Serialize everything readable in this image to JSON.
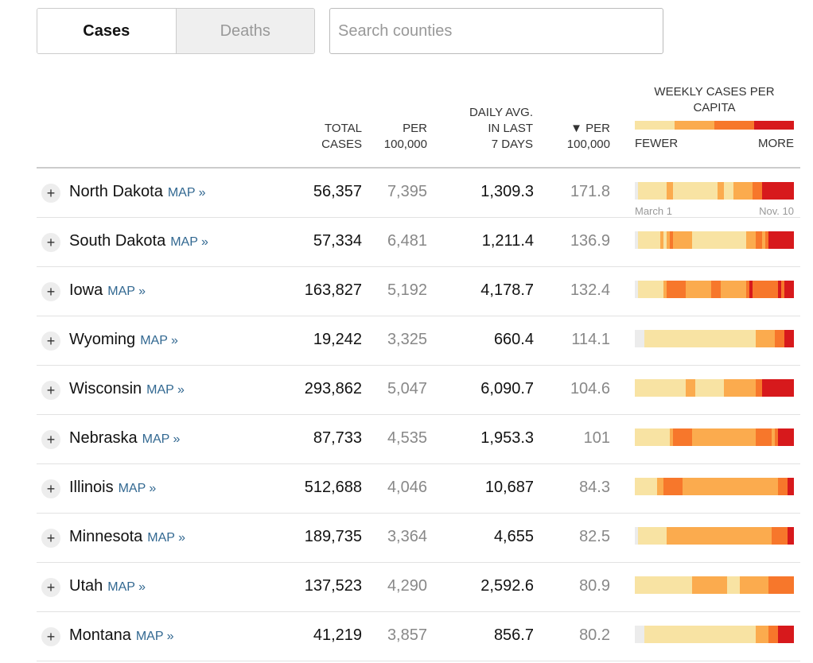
{
  "tabs": [
    {
      "label": "Cases",
      "active": true
    },
    {
      "label": "Deaths",
      "active": false
    }
  ],
  "search": {
    "placeholder": "Search counties",
    "value": ""
  },
  "headers": {
    "total_cases": "TOTAL\nCASES",
    "per_100k": "PER\n100,000",
    "daily_avg": "DAILY AVG.\nIN LAST\n7 DAYS",
    "per_100k_sorted": "▼ PER\n100,000",
    "weekly": "WEEKLY CASES PER CAPITA",
    "legend_fewer": "FEWER",
    "legend_more": "MORE",
    "legend_colors": [
      "#f8e3a3",
      "#fbab4e",
      "#f7772b",
      "#d7191c"
    ]
  },
  "spark_labels": {
    "start": "March 1",
    "end": "Nov. 10"
  },
  "map_label": "MAP »",
  "rows": [
    {
      "name": "North Dakota",
      "total": "56,357",
      "per": "7,395",
      "daily": "1,309.3",
      "per2": "171.8",
      "weeks": [
        0,
        1,
        1,
        1,
        1,
        1,
        1,
        1,
        1,
        1,
        2,
        2,
        1,
        1,
        1,
        1,
        1,
        1,
        1,
        1,
        1,
        1,
        1,
        1,
        1,
        1,
        2,
        2,
        1,
        1,
        1,
        2,
        2,
        2,
        2,
        2,
        2,
        3,
        3,
        3,
        4,
        4,
        4,
        4,
        4,
        4,
        4,
        4,
        4,
        4
      ]
    },
    {
      "name": "South Dakota",
      "total": "57,334",
      "per": "6,481",
      "daily": "1,211.4",
      "per2": "136.9",
      "weeks": [
        0,
        1,
        1,
        1,
        1,
        1,
        1,
        1,
        2,
        1,
        2,
        3,
        2,
        2,
        2,
        2,
        2,
        2,
        1,
        1,
        1,
        1,
        1,
        1,
        1,
        1,
        1,
        1,
        1,
        1,
        1,
        1,
        1,
        1,
        1,
        2,
        2,
        2,
        3,
        3,
        2,
        3,
        4,
        4,
        4,
        4,
        4,
        4,
        4,
        4
      ]
    },
    {
      "name": "Iowa",
      "total": "163,827",
      "per": "5,192",
      "daily": "4,178.7",
      "per2": "132.4",
      "weeks": [
        0,
        1,
        1,
        1,
        1,
        1,
        1,
        1,
        1,
        2,
        3,
        3,
        3,
        3,
        3,
        3,
        2,
        2,
        2,
        2,
        2,
        2,
        2,
        2,
        3,
        3,
        3,
        2,
        2,
        2,
        2,
        2,
        2,
        2,
        2,
        3,
        4,
        3,
        3,
        3,
        3,
        3,
        3,
        3,
        3,
        4,
        3,
        4,
        4,
        4
      ]
    },
    {
      "name": "Wyoming",
      "total": "19,242",
      "per": "3,325",
      "daily": "660.4",
      "per2": "114.1",
      "weeks": [
        0,
        0,
        0,
        1,
        1,
        1,
        1,
        1,
        1,
        1,
        1,
        1,
        1,
        1,
        1,
        1,
        1,
        1,
        1,
        1,
        1,
        1,
        1,
        1,
        1,
        1,
        1,
        1,
        1,
        1,
        1,
        1,
        1,
        1,
        1,
        1,
        1,
        1,
        2,
        2,
        2,
        2,
        2,
        2,
        3,
        3,
        3,
        4,
        4,
        4
      ]
    },
    {
      "name": "Wisconsin",
      "total": "293,862",
      "per": "5,047",
      "daily": "6,090.7",
      "per2": "104.6",
      "weeks": [
        1,
        1,
        1,
        1,
        1,
        1,
        1,
        1,
        1,
        1,
        1,
        1,
        1,
        1,
        1,
        1,
        2,
        2,
        2,
        1,
        1,
        1,
        1,
        1,
        1,
        1,
        1,
        1,
        2,
        2,
        2,
        2,
        2,
        2,
        2,
        2,
        2,
        2,
        3,
        3,
        4,
        4,
        4,
        4,
        4,
        4,
        4,
        4,
        4,
        4
      ]
    },
    {
      "name": "Nebraska",
      "total": "87,733",
      "per": "4,535",
      "daily": "1,953.3",
      "per2": "101",
      "weeks": [
        1,
        1,
        1,
        1,
        1,
        1,
        1,
        1,
        1,
        1,
        1,
        2,
        3,
        3,
        3,
        3,
        3,
        3,
        2,
        2,
        2,
        2,
        2,
        2,
        2,
        2,
        2,
        2,
        2,
        2,
        2,
        2,
        2,
        2,
        2,
        2,
        2,
        2,
        3,
        3,
        3,
        3,
        3,
        2,
        3,
        4,
        4,
        4,
        4,
        4
      ]
    },
    {
      "name": "Illinois",
      "total": "512,688",
      "per": "4,046",
      "daily": "10,687",
      "per2": "84.3",
      "weeks": [
        1,
        1,
        1,
        1,
        1,
        1,
        1,
        2,
        2,
        3,
        3,
        3,
        3,
        3,
        3,
        2,
        2,
        2,
        2,
        2,
        2,
        2,
        2,
        2,
        2,
        2,
        2,
        2,
        2,
        2,
        2,
        2,
        2,
        2,
        2,
        2,
        2,
        2,
        2,
        2,
        2,
        2,
        2,
        2,
        2,
        3,
        3,
        3,
        4,
        4
      ]
    },
    {
      "name": "Minnesota",
      "total": "189,735",
      "per": "3,364",
      "daily": "4,655",
      "per2": "82.5",
      "weeks": [
        0,
        1,
        1,
        1,
        1,
        1,
        1,
        1,
        1,
        1,
        2,
        2,
        2,
        2,
        2,
        2,
        2,
        2,
        2,
        2,
        2,
        2,
        2,
        2,
        2,
        2,
        2,
        2,
        2,
        2,
        2,
        2,
        2,
        2,
        2,
        2,
        2,
        2,
        2,
        2,
        2,
        2,
        2,
        3,
        3,
        3,
        3,
        3,
        4,
        4
      ]
    },
    {
      "name": "Utah",
      "total": "137,523",
      "per": "4,290",
      "daily": "2,592.6",
      "per2": "80.9",
      "weeks": [
        1,
        1,
        1,
        1,
        1,
        1,
        1,
        1,
        1,
        1,
        1,
        1,
        1,
        1,
        1,
        1,
        1,
        1,
        2,
        2,
        2,
        2,
        2,
        2,
        2,
        2,
        2,
        2,
        2,
        1,
        1,
        1,
        1,
        2,
        2,
        2,
        2,
        2,
        2,
        2,
        2,
        2,
        3,
        3,
        3,
        3,
        3,
        3,
        3,
        3
      ]
    },
    {
      "name": "Montana",
      "total": "41,219",
      "per": "3,857",
      "daily": "856.7",
      "per2": "80.2",
      "weeks": [
        0,
        0,
        0,
        1,
        1,
        1,
        1,
        1,
        1,
        1,
        1,
        1,
        1,
        1,
        1,
        1,
        1,
        1,
        1,
        1,
        1,
        1,
        1,
        1,
        1,
        1,
        1,
        1,
        1,
        1,
        1,
        1,
        1,
        1,
        1,
        1,
        1,
        1,
        2,
        2,
        2,
        2,
        3,
        3,
        3,
        4,
        4,
        4,
        4,
        4
      ]
    }
  ],
  "palette": [
    "#ececec",
    "#f8e3a3",
    "#fbab4e",
    "#f7772b",
    "#d7191c"
  ]
}
